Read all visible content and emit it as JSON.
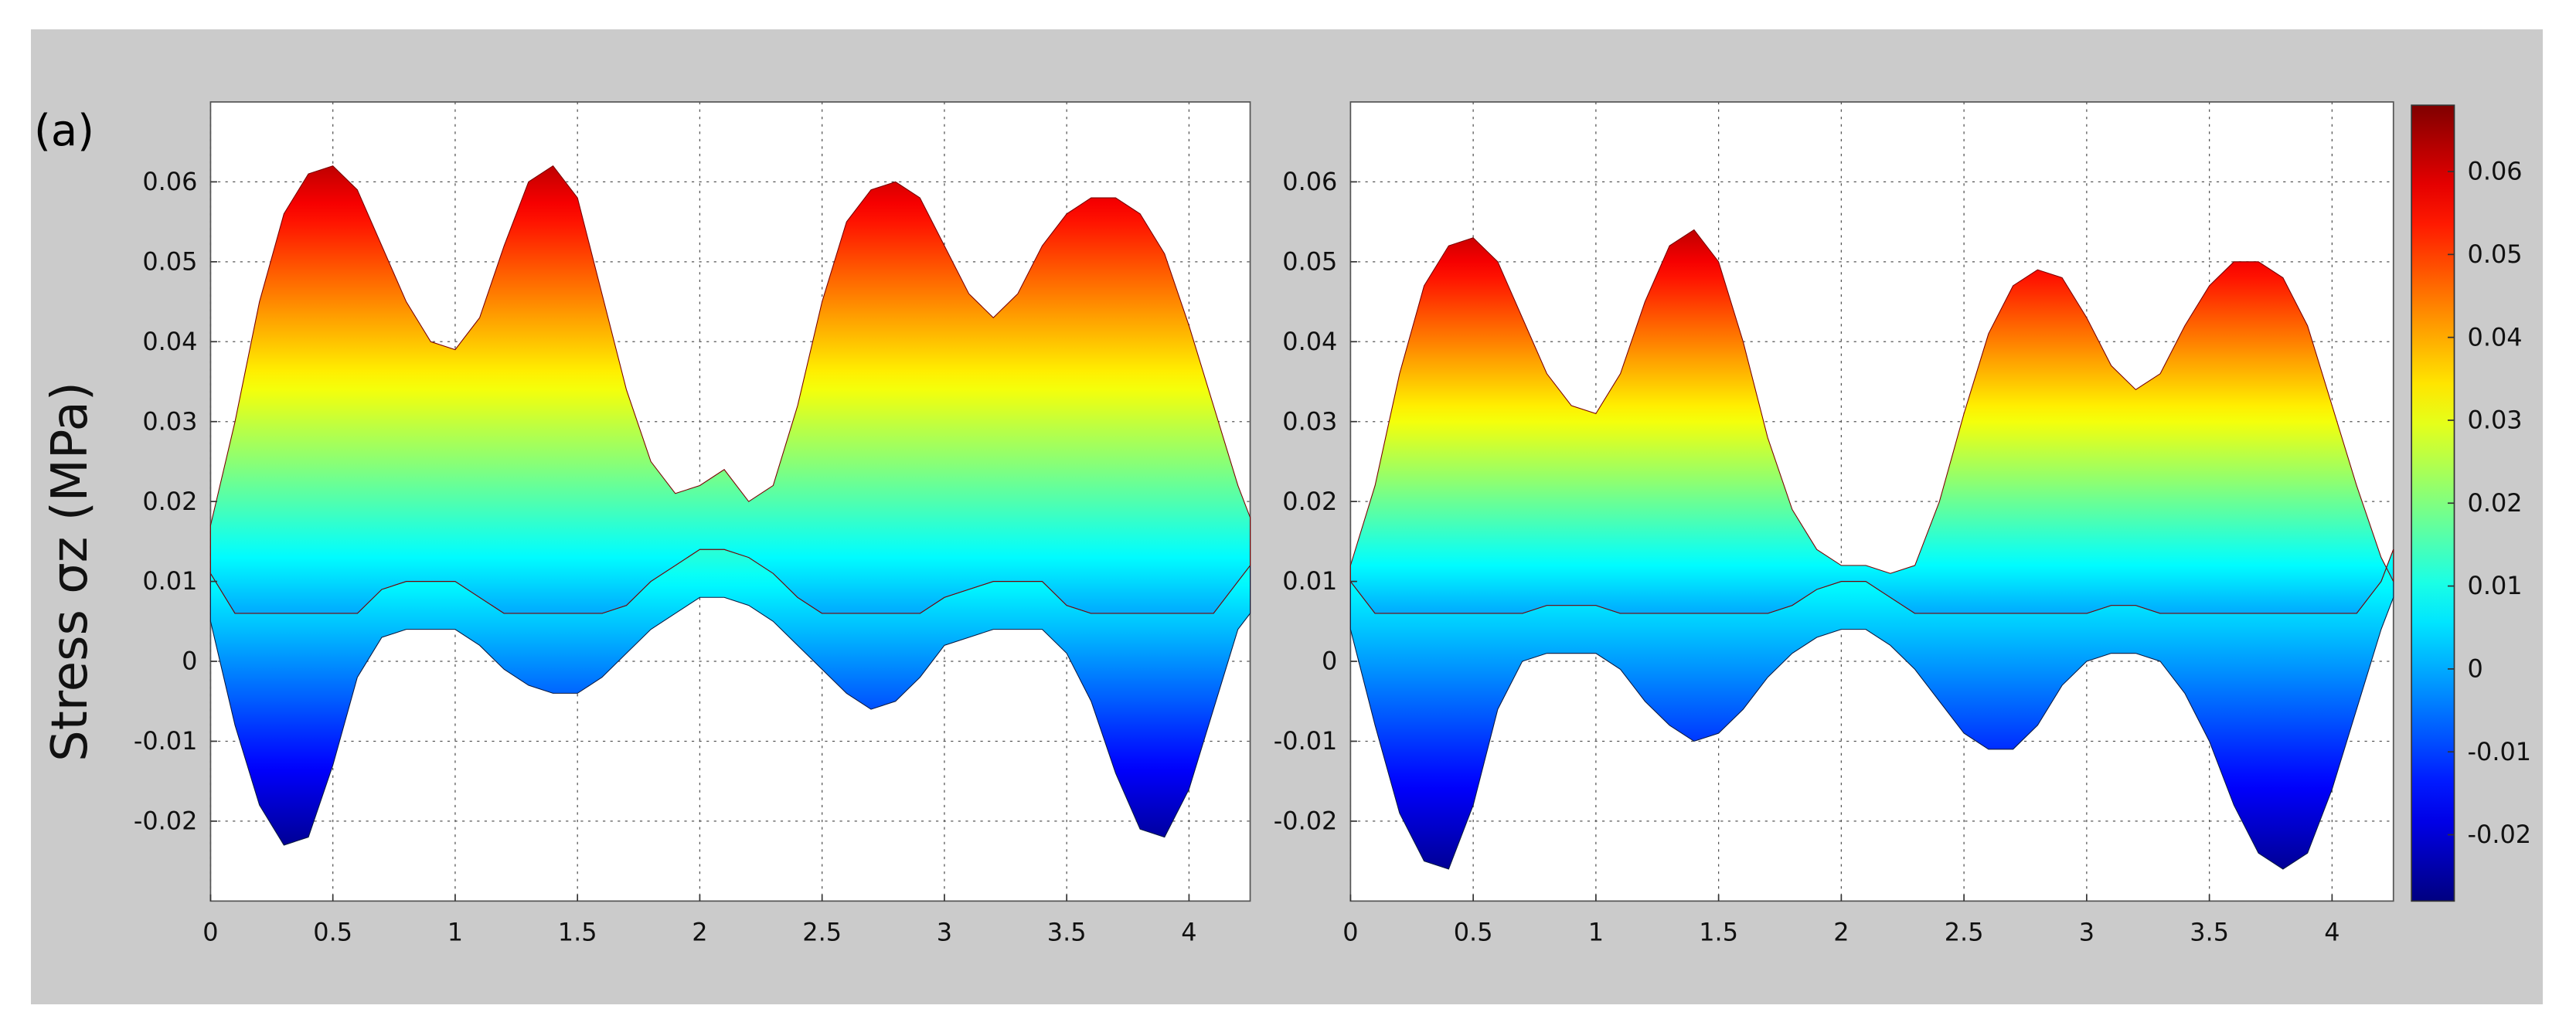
{
  "figure": {
    "panel_label": "(a)",
    "ylabel": "Stress σz (MPa)"
  },
  "colorbar": {
    "range": [
      -0.028,
      0.068
    ],
    "ticks": [
      "0.06",
      "0.05",
      "0.04",
      "0.03",
      "0.02",
      "0.01",
      "0",
      "-0.01",
      "-0.02"
    ],
    "tick_values": [
      0.06,
      0.05,
      0.04,
      0.03,
      0.02,
      0.01,
      0,
      -0.01,
      -0.02
    ],
    "colormap": "jet"
  },
  "chart_data": [
    {
      "type": "area",
      "title": "",
      "xlabel": "",
      "ylabel": "Stress σz (MPa)",
      "xlim": [
        0,
        4.25
      ],
      "ylim": [
        -0.03,
        0.07
      ],
      "grid": true,
      "xticks": [
        "0",
        "0.5",
        "1",
        "1.5",
        "2",
        "2.5",
        "3",
        "3.5",
        "4"
      ],
      "xtick_values": [
        0,
        0.5,
        1,
        1.5,
        2,
        2.5,
        3,
        3.5,
        4
      ],
      "yticks": [
        "0.06",
        "0.05",
        "0.04",
        "0.03",
        "0.02",
        "0.01",
        "0",
        "-0.01",
        "-0.02"
      ],
      "ytick_values": [
        0.06,
        0.05,
        0.04,
        0.03,
        0.02,
        0.01,
        0,
        -0.01,
        -0.02
      ],
      "series": [
        {
          "x": [
            0,
            0.1,
            0.2,
            0.3,
            0.4,
            0.5,
            0.6,
            0.7,
            0.8,
            0.9,
            1.0,
            1.1,
            1.2,
            1.3,
            1.4,
            1.5,
            1.6,
            1.7,
            1.8,
            1.9,
            2.0,
            2.1,
            2.2,
            2.3,
            2.4,
            2.5,
            2.6,
            2.7,
            2.8,
            2.9,
            3.0,
            3.1,
            3.2,
            3.3,
            3.4,
            3.5,
            3.6,
            3.7,
            3.8,
            3.9,
            4.0,
            4.1,
            4.2,
            4.25
          ],
          "y": [
            0.017,
            0.03,
            0.045,
            0.056,
            0.061,
            0.062,
            0.059,
            0.052,
            0.045,
            0.04,
            0.039,
            0.043,
            0.052,
            0.06,
            0.062,
            0.058,
            0.046,
            0.034,
            0.025,
            0.021,
            0.022,
            0.024,
            0.02,
            0.022,
            0.032,
            0.045,
            0.055,
            0.059,
            0.06,
            0.058,
            0.052,
            0.046,
            0.043,
            0.046,
            0.052,
            0.056,
            0.058,
            0.058,
            0.056,
            0.051,
            0.042,
            0.032,
            0.022,
            0.018
          ]
        },
        {
          "x": [
            0,
            0.1,
            0.2,
            0.3,
            0.4,
            0.5,
            0.6,
            0.7,
            0.8,
            0.9,
            1.0,
            1.1,
            1.2,
            1.3,
            1.4,
            1.5,
            1.6,
            1.7,
            1.8,
            1.9,
            2.0,
            2.1,
            2.2,
            2.3,
            2.4,
            2.5,
            2.6,
            2.7,
            2.8,
            2.9,
            3.0,
            3.1,
            3.2,
            3.3,
            3.4,
            3.5,
            3.6,
            3.7,
            3.8,
            3.9,
            4.0,
            4.1,
            4.2,
            4.25
          ],
          "y": [
            0.005,
            -0.008,
            -0.018,
            -0.023,
            -0.022,
            -0.013,
            -0.002,
            0.003,
            0.004,
            0.004,
            0.004,
            0.002,
            -0.001,
            -0.003,
            -0.004,
            -0.004,
            -0.002,
            0.001,
            0.004,
            0.006,
            0.008,
            0.008,
            0.007,
            0.005,
            0.002,
            -0.001,
            -0.004,
            -0.006,
            -0.005,
            -0.002,
            0.002,
            0.003,
            0.004,
            0.004,
            0.004,
            0.001,
            -0.005,
            -0.014,
            -0.021,
            -0.022,
            -0.016,
            -0.006,
            0.004,
            0.006
          ]
        }
      ]
    },
    {
      "type": "area",
      "title": "",
      "xlabel": "",
      "ylabel": "",
      "xlim": [
        0,
        4.25
      ],
      "ylim": [
        -0.03,
        0.07
      ],
      "grid": true,
      "xticks": [
        "0",
        "0.5",
        "1",
        "1.5",
        "2",
        "2.5",
        "3",
        "3.5",
        "4"
      ],
      "xtick_values": [
        0,
        0.5,
        1,
        1.5,
        2,
        2.5,
        3,
        3.5,
        4
      ],
      "yticks": [
        "0.06",
        "0.05",
        "0.04",
        "0.03",
        "0.02",
        "0.01",
        "0",
        "-0.01",
        "-0.02"
      ],
      "ytick_values": [
        0.06,
        0.05,
        0.04,
        0.03,
        0.02,
        0.01,
        0,
        -0.01,
        -0.02
      ],
      "series": [
        {
          "x": [
            0,
            0.1,
            0.2,
            0.3,
            0.4,
            0.5,
            0.6,
            0.7,
            0.8,
            0.9,
            1.0,
            1.1,
            1.2,
            1.3,
            1.4,
            1.5,
            1.6,
            1.7,
            1.8,
            1.9,
            2.0,
            2.1,
            2.2,
            2.3,
            2.4,
            2.5,
            2.6,
            2.7,
            2.8,
            2.9,
            3.0,
            3.1,
            3.2,
            3.3,
            3.4,
            3.5,
            3.6,
            3.7,
            3.8,
            3.9,
            4.0,
            4.1,
            4.2,
            4.25
          ],
          "y": [
            0.012,
            0.022,
            0.036,
            0.047,
            0.052,
            0.053,
            0.05,
            0.043,
            0.036,
            0.032,
            0.031,
            0.036,
            0.045,
            0.052,
            0.054,
            0.05,
            0.04,
            0.028,
            0.019,
            0.014,
            0.012,
            0.012,
            0.011,
            0.012,
            0.02,
            0.031,
            0.041,
            0.047,
            0.049,
            0.048,
            0.043,
            0.037,
            0.034,
            0.036,
            0.042,
            0.047,
            0.05,
            0.05,
            0.048,
            0.042,
            0.032,
            0.022,
            0.013,
            0.01
          ]
        },
        {
          "x": [
            0,
            0.1,
            0.2,
            0.3,
            0.4,
            0.5,
            0.6,
            0.7,
            0.8,
            0.9,
            1.0,
            1.1,
            1.2,
            1.3,
            1.4,
            1.5,
            1.6,
            1.7,
            1.8,
            1.9,
            2.0,
            2.1,
            2.2,
            2.3,
            2.4,
            2.5,
            2.6,
            2.7,
            2.8,
            2.9,
            3.0,
            3.1,
            3.2,
            3.3,
            3.4,
            3.5,
            3.6,
            3.7,
            3.8,
            3.9,
            4.0,
            4.1,
            4.2,
            4.25
          ],
          "y": [
            0.004,
            -0.008,
            -0.019,
            -0.025,
            -0.026,
            -0.018,
            -0.006,
            0.0,
            0.001,
            0.001,
            0.001,
            -0.001,
            -0.005,
            -0.008,
            -0.01,
            -0.009,
            -0.006,
            -0.002,
            0.001,
            0.003,
            0.004,
            0.004,
            0.002,
            -0.001,
            -0.005,
            -0.009,
            -0.011,
            -0.011,
            -0.008,
            -0.003,
            0.0,
            0.001,
            0.001,
            0.0,
            -0.004,
            -0.01,
            -0.018,
            -0.024,
            -0.026,
            -0.024,
            -0.016,
            -0.006,
            0.004,
            0.008
          ]
        }
      ]
    }
  ]
}
